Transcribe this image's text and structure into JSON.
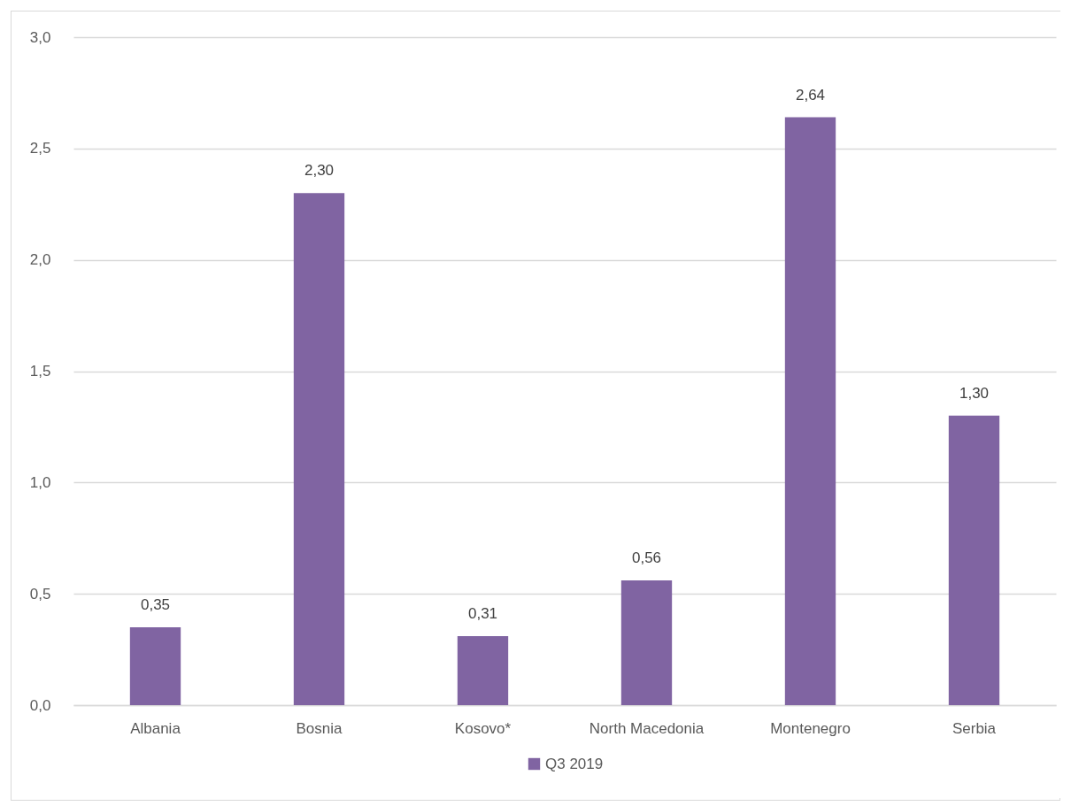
{
  "chart_data": {
    "type": "bar",
    "categories": [
      "Albania",
      "Bosnia",
      "Kosovo*",
      "North Macedonia",
      "Montenegro",
      "Serbia"
    ],
    "series": [
      {
        "name": "Q3 2019",
        "color": "#8064a2",
        "values": [
          0.35,
          2.3,
          0.31,
          0.56,
          2.64,
          1.3
        ],
        "value_labels": [
          "0,35",
          "2,30",
          "0,31",
          "0,56",
          "2,64",
          "1,30"
        ]
      }
    ],
    "ylim": [
      0,
      3
    ],
    "yticks": [
      {
        "value": 0,
        "label": "0,0"
      },
      {
        "value": 0.5,
        "label": "0,5"
      },
      {
        "value": 1,
        "label": "1,0"
      },
      {
        "value": 1.5,
        "label": "1,5"
      },
      {
        "value": 2,
        "label": "2,0"
      },
      {
        "value": 2.5,
        "label": "2,5"
      },
      {
        "value": 3,
        "label": "3,0"
      }
    ],
    "grid": "y",
    "legend": "bottom"
  }
}
